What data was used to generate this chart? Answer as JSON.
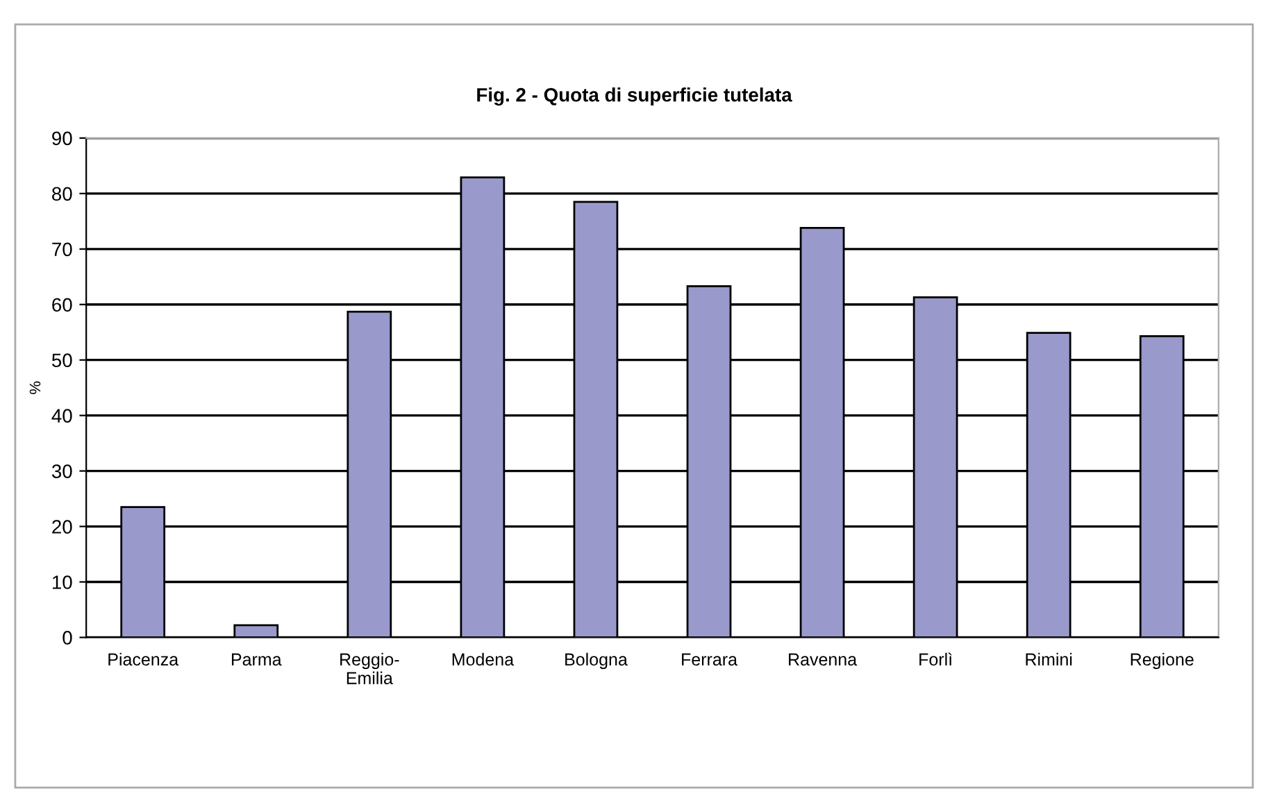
{
  "chart_data": {
    "type": "bar",
    "title": "Fig. 2 - Quota di superficie tutelata",
    "ylabel": "%",
    "categories": [
      "Piacenza",
      "Parma",
      "Reggio-\nEmilia",
      "Modena",
      "Bologna",
      "Ferrara",
      "Ravenna",
      "Forlì",
      "Rimini",
      "Regione"
    ],
    "values": [
      23.5,
      2.2,
      58.7,
      82.9,
      78.5,
      63.3,
      73.8,
      61.3,
      54.9,
      54.3
    ],
    "color": "#9999cc",
    "ylim": [
      0,
      90
    ],
    "yticks": [
      0,
      10,
      20,
      30,
      40,
      50,
      60,
      70,
      80,
      90
    ],
    "grid": "y",
    "legend": false
  }
}
